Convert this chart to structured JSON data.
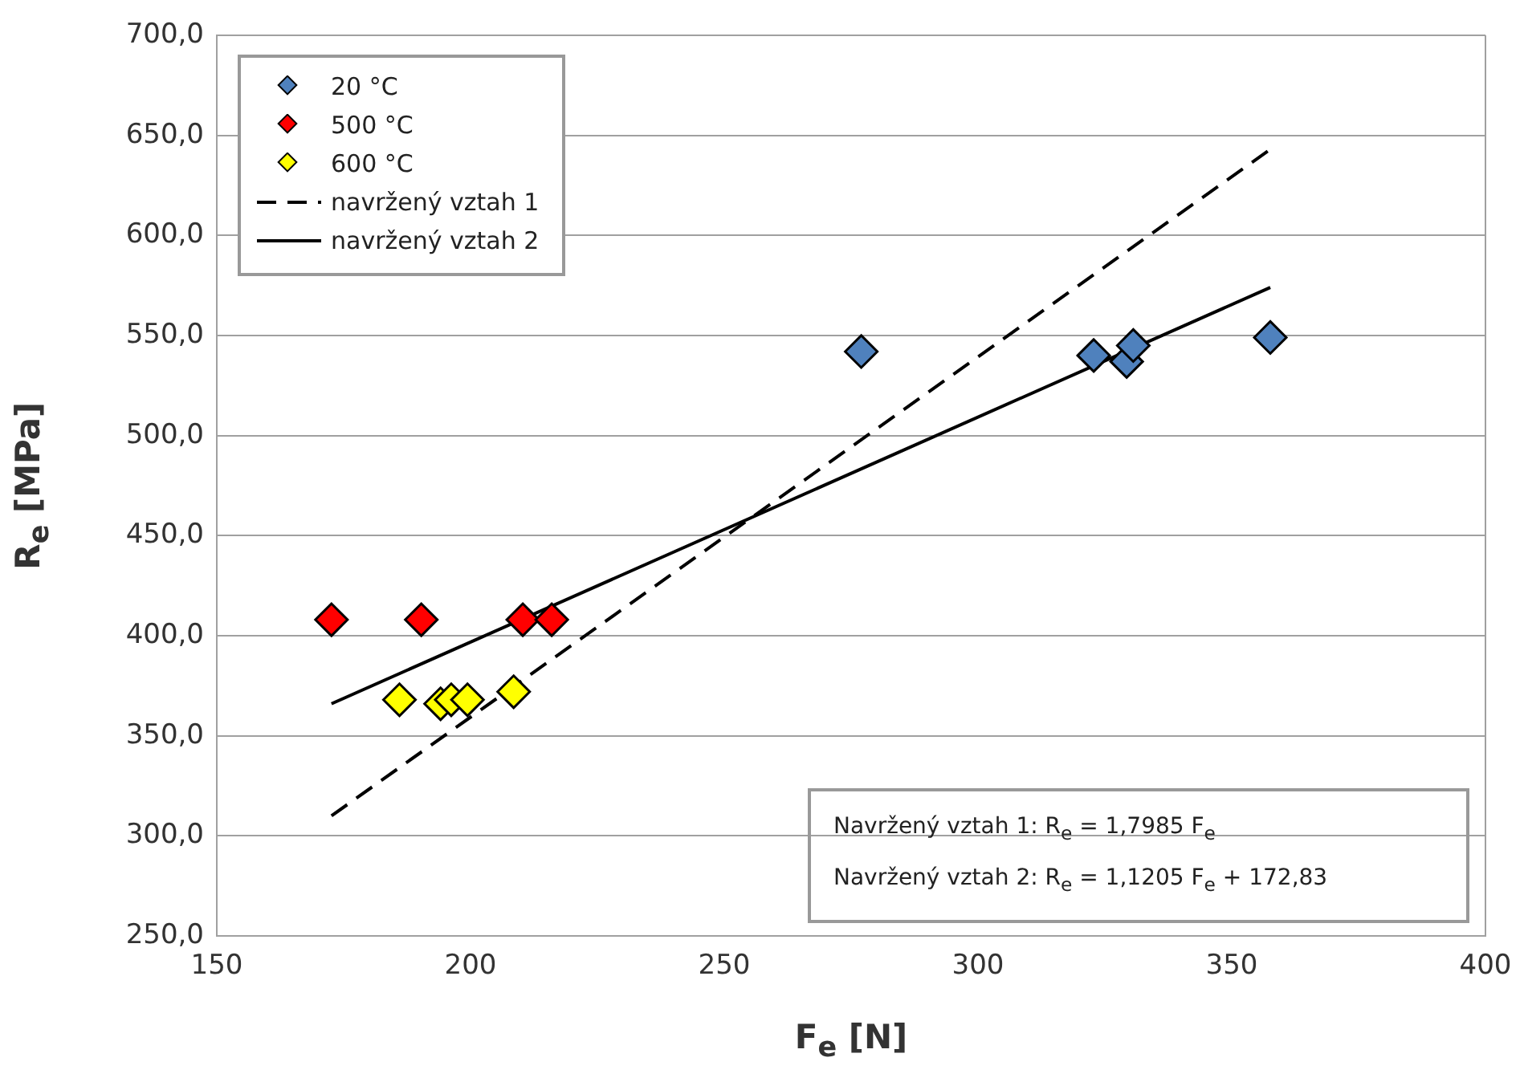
{
  "chart_data": {
    "type": "scatter",
    "xlabel": "F$_{e}$ [N]",
    "ylabel": "R$_{e}$ [MPa]",
    "xlim": [
      150,
      400
    ],
    "xticks": [
      150,
      200,
      250,
      300,
      350,
      400
    ],
    "ylim": [
      250,
      700
    ],
    "yticks": [
      {
        "value": 250,
        "label": "250,0"
      },
      {
        "value": 300,
        "label": "300,0"
      },
      {
        "value": 350,
        "label": "350,0"
      },
      {
        "value": 400,
        "label": "400,0"
      },
      {
        "value": 450,
        "label": "450,0"
      },
      {
        "value": 500,
        "label": "500,0"
      },
      {
        "value": 550,
        "label": "550,0"
      },
      {
        "value": 600,
        "label": "600,0"
      },
      {
        "value": 650,
        "label": "650,0"
      },
      {
        "value": 700,
        "label": "700,0"
      }
    ],
    "grid": "y",
    "legend": "top left",
    "marker": "diamond",
    "series": [
      {
        "name": "20 °C",
        "color": "#4f81bd",
        "x": [
          277,
          322.8,
          329.3,
          330.6,
          357.6
        ],
        "values": [
          542,
          540,
          537,
          545,
          549
        ]
      },
      {
        "name": "500 °C",
        "color": "#ff0000",
        "x": [
          172.6,
          190.3,
          210.3,
          216
        ],
        "values": [
          408,
          408,
          408,
          408
        ]
      },
      {
        "name": "600 °C",
        "color": "#ffff00",
        "x": [
          186,
          194.1,
          196.2,
          199.4,
          208.5
        ],
        "values": [
          368,
          366,
          368,
          368,
          372
        ]
      },
      {
        "name": "navržený vztah 1",
        "type": "line",
        "color": "#000000",
        "line_style": "dashed",
        "marker": "none",
        "x": [
          172.6,
          357.6
        ],
        "values": [
          310,
          643
        ]
      },
      {
        "name": "navržený vztah 2",
        "type": "line",
        "color": "#000000",
        "line_style": "solid",
        "marker": "none",
        "x": [
          172.6,
          357.6
        ],
        "values": [
          366,
          574
        ]
      }
    ],
    "annotations": [
      "Navržený vztah 1: R$_{e}$ = 1,7985 F$_{e}$",
      "Navržený vztah 2: R$_{e}$ = 1,1205 F$_{e}$ + 172,83"
    ]
  }
}
